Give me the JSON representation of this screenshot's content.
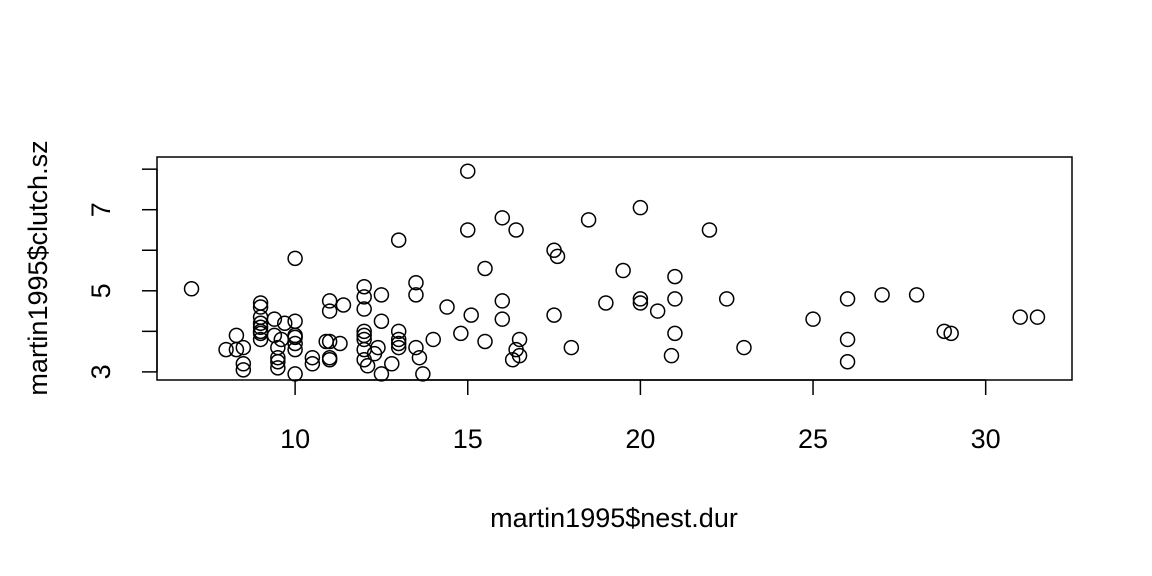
{
  "chart_data": {
    "type": "scatter",
    "title": "",
    "xlabel": "martin1995$nest.dur",
    "ylabel": "martin1995$clutch.sz",
    "xlim": [
      6.0,
      32.5
    ],
    "ylim": [
      2.8,
      8.3
    ],
    "xticks": [
      10,
      15,
      20,
      25,
      30
    ],
    "yticks": [
      3,
      4,
      5,
      6,
      7,
      8
    ],
    "ytick_labels": [
      "3",
      "",
      "5",
      "",
      "7",
      ""
    ],
    "grid": false,
    "marker": "open-circle",
    "color": "#000000",
    "points": [
      {
        "x": 7.0,
        "y": 5.05
      },
      {
        "x": 8.0,
        "y": 3.55
      },
      {
        "x": 8.3,
        "y": 3.9
      },
      {
        "x": 8.3,
        "y": 3.55
      },
      {
        "x": 8.5,
        "y": 3.6
      },
      {
        "x": 8.5,
        "y": 3.2
      },
      {
        "x": 8.5,
        "y": 3.05
      },
      {
        "x": 9.0,
        "y": 4.7
      },
      {
        "x": 9.0,
        "y": 4.6
      },
      {
        "x": 9.0,
        "y": 4.35
      },
      {
        "x": 9.0,
        "y": 4.2
      },
      {
        "x": 9.0,
        "y": 4.1
      },
      {
        "x": 9.0,
        "y": 4.0
      },
      {
        "x": 9.0,
        "y": 3.95
      },
      {
        "x": 9.0,
        "y": 3.8
      },
      {
        "x": 9.4,
        "y": 3.9
      },
      {
        "x": 9.4,
        "y": 4.3
      },
      {
        "x": 9.5,
        "y": 3.6
      },
      {
        "x": 9.5,
        "y": 3.35
      },
      {
        "x": 9.5,
        "y": 3.25
      },
      {
        "x": 9.5,
        "y": 3.1
      },
      {
        "x": 9.6,
        "y": 3.8
      },
      {
        "x": 9.7,
        "y": 4.2
      },
      {
        "x": 10.0,
        "y": 5.8
      },
      {
        "x": 10.0,
        "y": 4.25
      },
      {
        "x": 10.0,
        "y": 3.9
      },
      {
        "x": 10.0,
        "y": 3.85
      },
      {
        "x": 10.0,
        "y": 3.7
      },
      {
        "x": 10.0,
        "y": 3.55
      },
      {
        "x": 10.0,
        "y": 2.95
      },
      {
        "x": 10.5,
        "y": 3.35
      },
      {
        "x": 10.5,
        "y": 3.2
      },
      {
        "x": 10.9,
        "y": 3.75
      },
      {
        "x": 11.0,
        "y": 4.75
      },
      {
        "x": 11.0,
        "y": 4.5
      },
      {
        "x": 11.0,
        "y": 3.75
      },
      {
        "x": 11.0,
        "y": 3.35
      },
      {
        "x": 11.0,
        "y": 3.3
      },
      {
        "x": 11.3,
        "y": 3.7
      },
      {
        "x": 11.4,
        "y": 4.65
      },
      {
        "x": 12.0,
        "y": 5.1
      },
      {
        "x": 12.0,
        "y": 4.85
      },
      {
        "x": 12.0,
        "y": 4.55
      },
      {
        "x": 12.0,
        "y": 4.0
      },
      {
        "x": 12.0,
        "y": 3.9
      },
      {
        "x": 12.0,
        "y": 3.8
      },
      {
        "x": 12.0,
        "y": 3.55
      },
      {
        "x": 12.0,
        "y": 3.3
      },
      {
        "x": 12.1,
        "y": 3.15
      },
      {
        "x": 12.3,
        "y": 3.45
      },
      {
        "x": 12.4,
        "y": 3.6
      },
      {
        "x": 12.5,
        "y": 4.9
      },
      {
        "x": 12.5,
        "y": 4.25
      },
      {
        "x": 12.5,
        "y": 2.95
      },
      {
        "x": 12.8,
        "y": 3.2
      },
      {
        "x": 13.0,
        "y": 6.25
      },
      {
        "x": 13.0,
        "y": 4.0
      },
      {
        "x": 13.0,
        "y": 3.8
      },
      {
        "x": 13.0,
        "y": 3.7
      },
      {
        "x": 13.0,
        "y": 3.6
      },
      {
        "x": 13.5,
        "y": 5.2
      },
      {
        "x": 13.5,
        "y": 4.9
      },
      {
        "x": 13.5,
        "y": 3.6
      },
      {
        "x": 13.6,
        "y": 3.35
      },
      {
        "x": 13.7,
        "y": 2.95
      },
      {
        "x": 14.0,
        "y": 3.8
      },
      {
        "x": 14.4,
        "y": 4.6
      },
      {
        "x": 14.8,
        "y": 3.95
      },
      {
        "x": 15.0,
        "y": 7.95
      },
      {
        "x": 15.0,
        "y": 6.5
      },
      {
        "x": 15.1,
        "y": 4.4
      },
      {
        "x": 15.5,
        "y": 5.55
      },
      {
        "x": 15.5,
        "y": 3.75
      },
      {
        "x": 16.0,
        "y": 6.8
      },
      {
        "x": 16.0,
        "y": 4.75
      },
      {
        "x": 16.0,
        "y": 4.3
      },
      {
        "x": 16.3,
        "y": 3.3
      },
      {
        "x": 16.4,
        "y": 6.5
      },
      {
        "x": 16.4,
        "y": 3.55
      },
      {
        "x": 16.5,
        "y": 3.8
      },
      {
        "x": 16.5,
        "y": 3.4
      },
      {
        "x": 17.5,
        "y": 6.0
      },
      {
        "x": 17.5,
        "y": 4.4
      },
      {
        "x": 17.6,
        "y": 5.85
      },
      {
        "x": 18.0,
        "y": 3.6
      },
      {
        "x": 18.5,
        "y": 6.75
      },
      {
        "x": 19.0,
        "y": 4.7
      },
      {
        "x": 19.5,
        "y": 5.5
      },
      {
        "x": 20.0,
        "y": 7.05
      },
      {
        "x": 20.0,
        "y": 4.8
      },
      {
        "x": 20.0,
        "y": 4.7
      },
      {
        "x": 20.5,
        "y": 4.5
      },
      {
        "x": 20.9,
        "y": 3.4
      },
      {
        "x": 21.0,
        "y": 5.35
      },
      {
        "x": 21.0,
        "y": 4.8
      },
      {
        "x": 21.0,
        "y": 3.95
      },
      {
        "x": 22.0,
        "y": 6.5
      },
      {
        "x": 22.5,
        "y": 4.8
      },
      {
        "x": 23.0,
        "y": 3.6
      },
      {
        "x": 25.0,
        "y": 4.3
      },
      {
        "x": 26.0,
        "y": 4.8
      },
      {
        "x": 26.0,
        "y": 3.8
      },
      {
        "x": 26.0,
        "y": 3.25
      },
      {
        "x": 27.0,
        "y": 4.9
      },
      {
        "x": 28.0,
        "y": 4.9
      },
      {
        "x": 28.8,
        "y": 4.0
      },
      {
        "x": 29.0,
        "y": 3.95
      },
      {
        "x": 31.0,
        "y": 4.35
      },
      {
        "x": 31.5,
        "y": 4.35
      }
    ]
  }
}
